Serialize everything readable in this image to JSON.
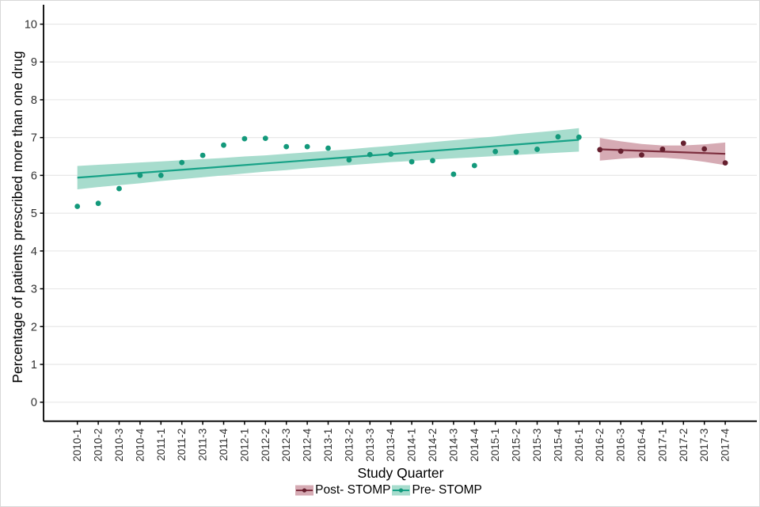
{
  "figure": {
    "background": "#ffffff",
    "gridline_color": "#e8e8e8",
    "axis_color": "#000000",
    "tick_label_color": "#303030"
  },
  "chart_data": {
    "type": "scatter",
    "title": "",
    "xlabel": "Study Quarter",
    "ylabel": "Percentage of patients prescribed more than one drug",
    "ylim": [
      0,
      10
    ],
    "yticks": [
      0,
      1,
      2,
      3,
      4,
      5,
      6,
      7,
      8,
      9,
      10
    ],
    "grid": "horizontal-only",
    "legend_position": "bottom-center",
    "categories": [
      "2010-1",
      "2010-2",
      "2010-3",
      "2010-4",
      "2011-1",
      "2011-2",
      "2011-3",
      "2011-4",
      "2012-1",
      "2012-2",
      "2012-3",
      "2012-4",
      "2013-1",
      "2013-2",
      "2013-3",
      "2013-4",
      "2014-1",
      "2014-2",
      "2014-3",
      "2014-4",
      "2015-1",
      "2015-2",
      "2015-3",
      "2015-4",
      "2016-1",
      "2016-2",
      "2016-3",
      "2016-4",
      "2017-1",
      "2017-2",
      "2017-3",
      "2017-4"
    ],
    "series": [
      {
        "name": "Post- STOMP",
        "start_index": 25,
        "quarters": [
          "2016-2",
          "2016-3",
          "2016-4",
          "2017-1",
          "2017-2",
          "2017-3",
          "2017-4"
        ],
        "values": [
          6.68,
          6.64,
          6.54,
          6.69,
          6.85,
          6.7,
          6.33
        ],
        "trend": [
          6.69,
          6.57
        ],
        "band_upper": [
          6.99,
          6.9,
          6.83,
          6.79,
          6.79,
          6.82,
          6.87
        ],
        "band_lower": [
          6.39,
          6.44,
          6.47,
          6.47,
          6.43,
          6.36,
          6.27
        ],
        "line_color": "#7d2f3f",
        "point_color": "#66202f",
        "band_color": "#d6abb4"
      },
      {
        "name": "Pre- STOMP",
        "start_index": 0,
        "quarters": [
          "2010-1",
          "2010-2",
          "2010-3",
          "2010-4",
          "2011-1",
          "2011-2",
          "2011-3",
          "2011-4",
          "2012-1",
          "2012-2",
          "2012-3",
          "2012-4",
          "2013-1",
          "2013-2",
          "2013-3",
          "2013-4",
          "2014-1",
          "2014-2",
          "2014-3",
          "2014-4",
          "2015-1",
          "2015-2",
          "2015-3",
          "2015-4",
          "2016-1"
        ],
        "values": [
          5.18,
          5.26,
          5.65,
          6.0,
          6.0,
          6.34,
          6.53,
          6.8,
          6.97,
          6.98,
          6.76,
          6.76,
          6.72,
          6.41,
          6.55,
          6.56,
          6.36,
          6.39,
          6.03,
          6.26,
          6.63,
          6.62,
          6.69,
          7.02,
          7.01
        ],
        "trend": [
          5.94,
          6.94
        ],
        "band_upper": [
          6.25,
          6.28,
          6.31,
          6.34,
          6.37,
          6.4,
          6.43,
          6.46,
          6.5,
          6.53,
          6.57,
          6.61,
          6.65,
          6.69,
          6.74,
          6.78,
          6.83,
          6.88,
          6.93,
          6.98,
          7.03,
          7.09,
          7.14,
          7.19,
          7.25
        ],
        "band_lower": [
          5.63,
          5.69,
          5.74,
          5.79,
          5.85,
          5.9,
          5.95,
          6.0,
          6.05,
          6.1,
          6.14,
          6.19,
          6.23,
          6.27,
          6.31,
          6.35,
          6.38,
          6.42,
          6.45,
          6.48,
          6.51,
          6.54,
          6.57,
          6.6,
          6.63
        ],
        "line_color": "#17a287",
        "point_color": "#13997b",
        "band_color": "#a7dccd"
      }
    ]
  }
}
